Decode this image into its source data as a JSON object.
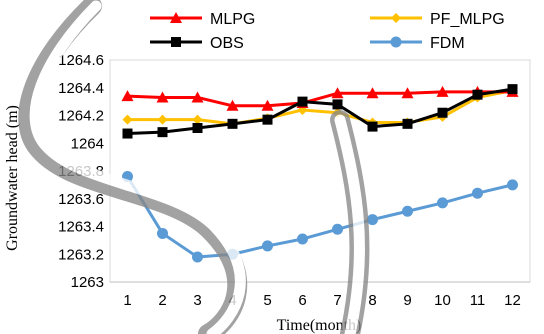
{
  "chart_data": {
    "type": "line",
    "xlabel": "Time(month)",
    "ylabel": "Groundwater head (m)",
    "x": [
      1,
      2,
      3,
      4,
      5,
      6,
      7,
      8,
      9,
      10,
      11,
      12
    ],
    "ylim": [
      1263,
      1264.6
    ],
    "ytick_labels": [
      "1263",
      "1263.2",
      "1263.4",
      "1263.6",
      "1263.8",
      "1264",
      "1264.2",
      "1264.4",
      "1264.6"
    ],
    "xtick_labels": [
      "1",
      "2",
      "3",
      "4",
      "5",
      "6",
      "7",
      "8",
      "9",
      "10",
      "11",
      "12"
    ],
    "grid": false,
    "legend_position": "top",
    "series": [
      {
        "name": "MLPG",
        "color": "#ff0000",
        "marker": "triangle",
        "values": [
          1264.34,
          1264.33,
          1264.33,
          1264.27,
          1264.27,
          1264.29,
          1264.36,
          1264.36,
          1264.36,
          1264.37,
          1264.37,
          1264.37
        ]
      },
      {
        "name": "PF_MLPG",
        "color": "#ffc000",
        "marker": "diamond",
        "values": [
          1264.17,
          1264.17,
          1264.17,
          1264.14,
          1264.18,
          1264.24,
          1264.22,
          1264.15,
          1264.15,
          1264.19,
          1264.33,
          1264.38
        ]
      },
      {
        "name": "OBS",
        "color": "#000000",
        "marker": "square",
        "values": [
          1264.07,
          1264.08,
          1264.11,
          1264.14,
          1264.17,
          1264.3,
          1264.28,
          1264.12,
          1264.14,
          1264.22,
          1264.35,
          1264.39
        ]
      },
      {
        "name": "FDM",
        "color": "#5b9bd5",
        "marker": "circle",
        "values": [
          1263.76,
          1263.35,
          1263.18,
          1263.2,
          1263.26,
          1263.31,
          1263.38,
          1263.45,
          1263.51,
          1263.57,
          1263.64,
          1263.7
        ]
      }
    ]
  }
}
